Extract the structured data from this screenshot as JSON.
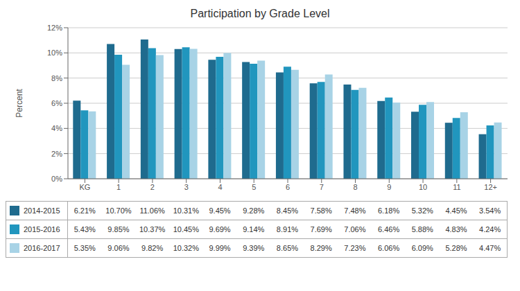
{
  "chart_data": {
    "type": "bar",
    "title": "Participation by Grade Level",
    "y_label": "Percent",
    "categories": [
      "KG",
      "1",
      "2",
      "3",
      "4",
      "5",
      "6",
      "7",
      "8",
      "9",
      "10",
      "11",
      "12+"
    ],
    "series": [
      {
        "name": "2014-2015",
        "color": "#1F6B8E",
        "values": [
          0.0621,
          0.107,
          0.1106,
          0.1031,
          0.0945,
          0.0928,
          0.0845,
          0.0758,
          0.0748,
          0.0618,
          0.0532,
          0.0445,
          0.0354
        ],
        "value_labels": [
          "6.21%",
          "10.70%",
          "11.06%",
          "10.31%",
          "9.45%",
          "9.28%",
          "8.45%",
          "7.58%",
          "7.48%",
          "6.18%",
          "5.32%",
          "4.45%",
          "3.54%"
        ]
      },
      {
        "name": "2015-2016",
        "color": "#2196BE",
        "values": [
          0.0543,
          0.0985,
          0.1037,
          0.1045,
          0.0969,
          0.0914,
          0.0891,
          0.0769,
          0.0706,
          0.0646,
          0.0588,
          0.0483,
          0.0424
        ],
        "value_labels": [
          "5.43%",
          "9.85%",
          "10.37%",
          "10.45%",
          "9.69%",
          "9.14%",
          "8.91%",
          "7.69%",
          "7.06%",
          "6.46%",
          "5.88%",
          "4.83%",
          "4.24%"
        ]
      },
      {
        "name": "2016-2017",
        "color": "#A8D3E6",
        "values": [
          0.0535,
          0.0906,
          0.0982,
          0.1032,
          0.0999,
          0.0939,
          0.0865,
          0.0829,
          0.0723,
          0.0606,
          0.0609,
          0.0528,
          0.0447
        ],
        "value_labels": [
          "5.35%",
          "9.06%",
          "9.82%",
          "10.32%",
          "9.99%",
          "9.39%",
          "8.65%",
          "8.29%",
          "7.23%",
          "6.06%",
          "6.09%",
          "5.28%",
          "4.47%"
        ]
      }
    ],
    "ylim": [
      0,
      0.12
    ],
    "yticks": [
      {
        "value": 0,
        "label": "0%"
      },
      {
        "value": 0.02,
        "label": "2%"
      },
      {
        "value": 0.04,
        "label": "4%"
      },
      {
        "value": 0.06,
        "label": "6%"
      },
      {
        "value": 0.08,
        "label": "8%"
      },
      {
        "value": 0.1,
        "label": "10%"
      },
      {
        "value": 0.12,
        "label": "12%"
      }
    ],
    "grid": true
  }
}
